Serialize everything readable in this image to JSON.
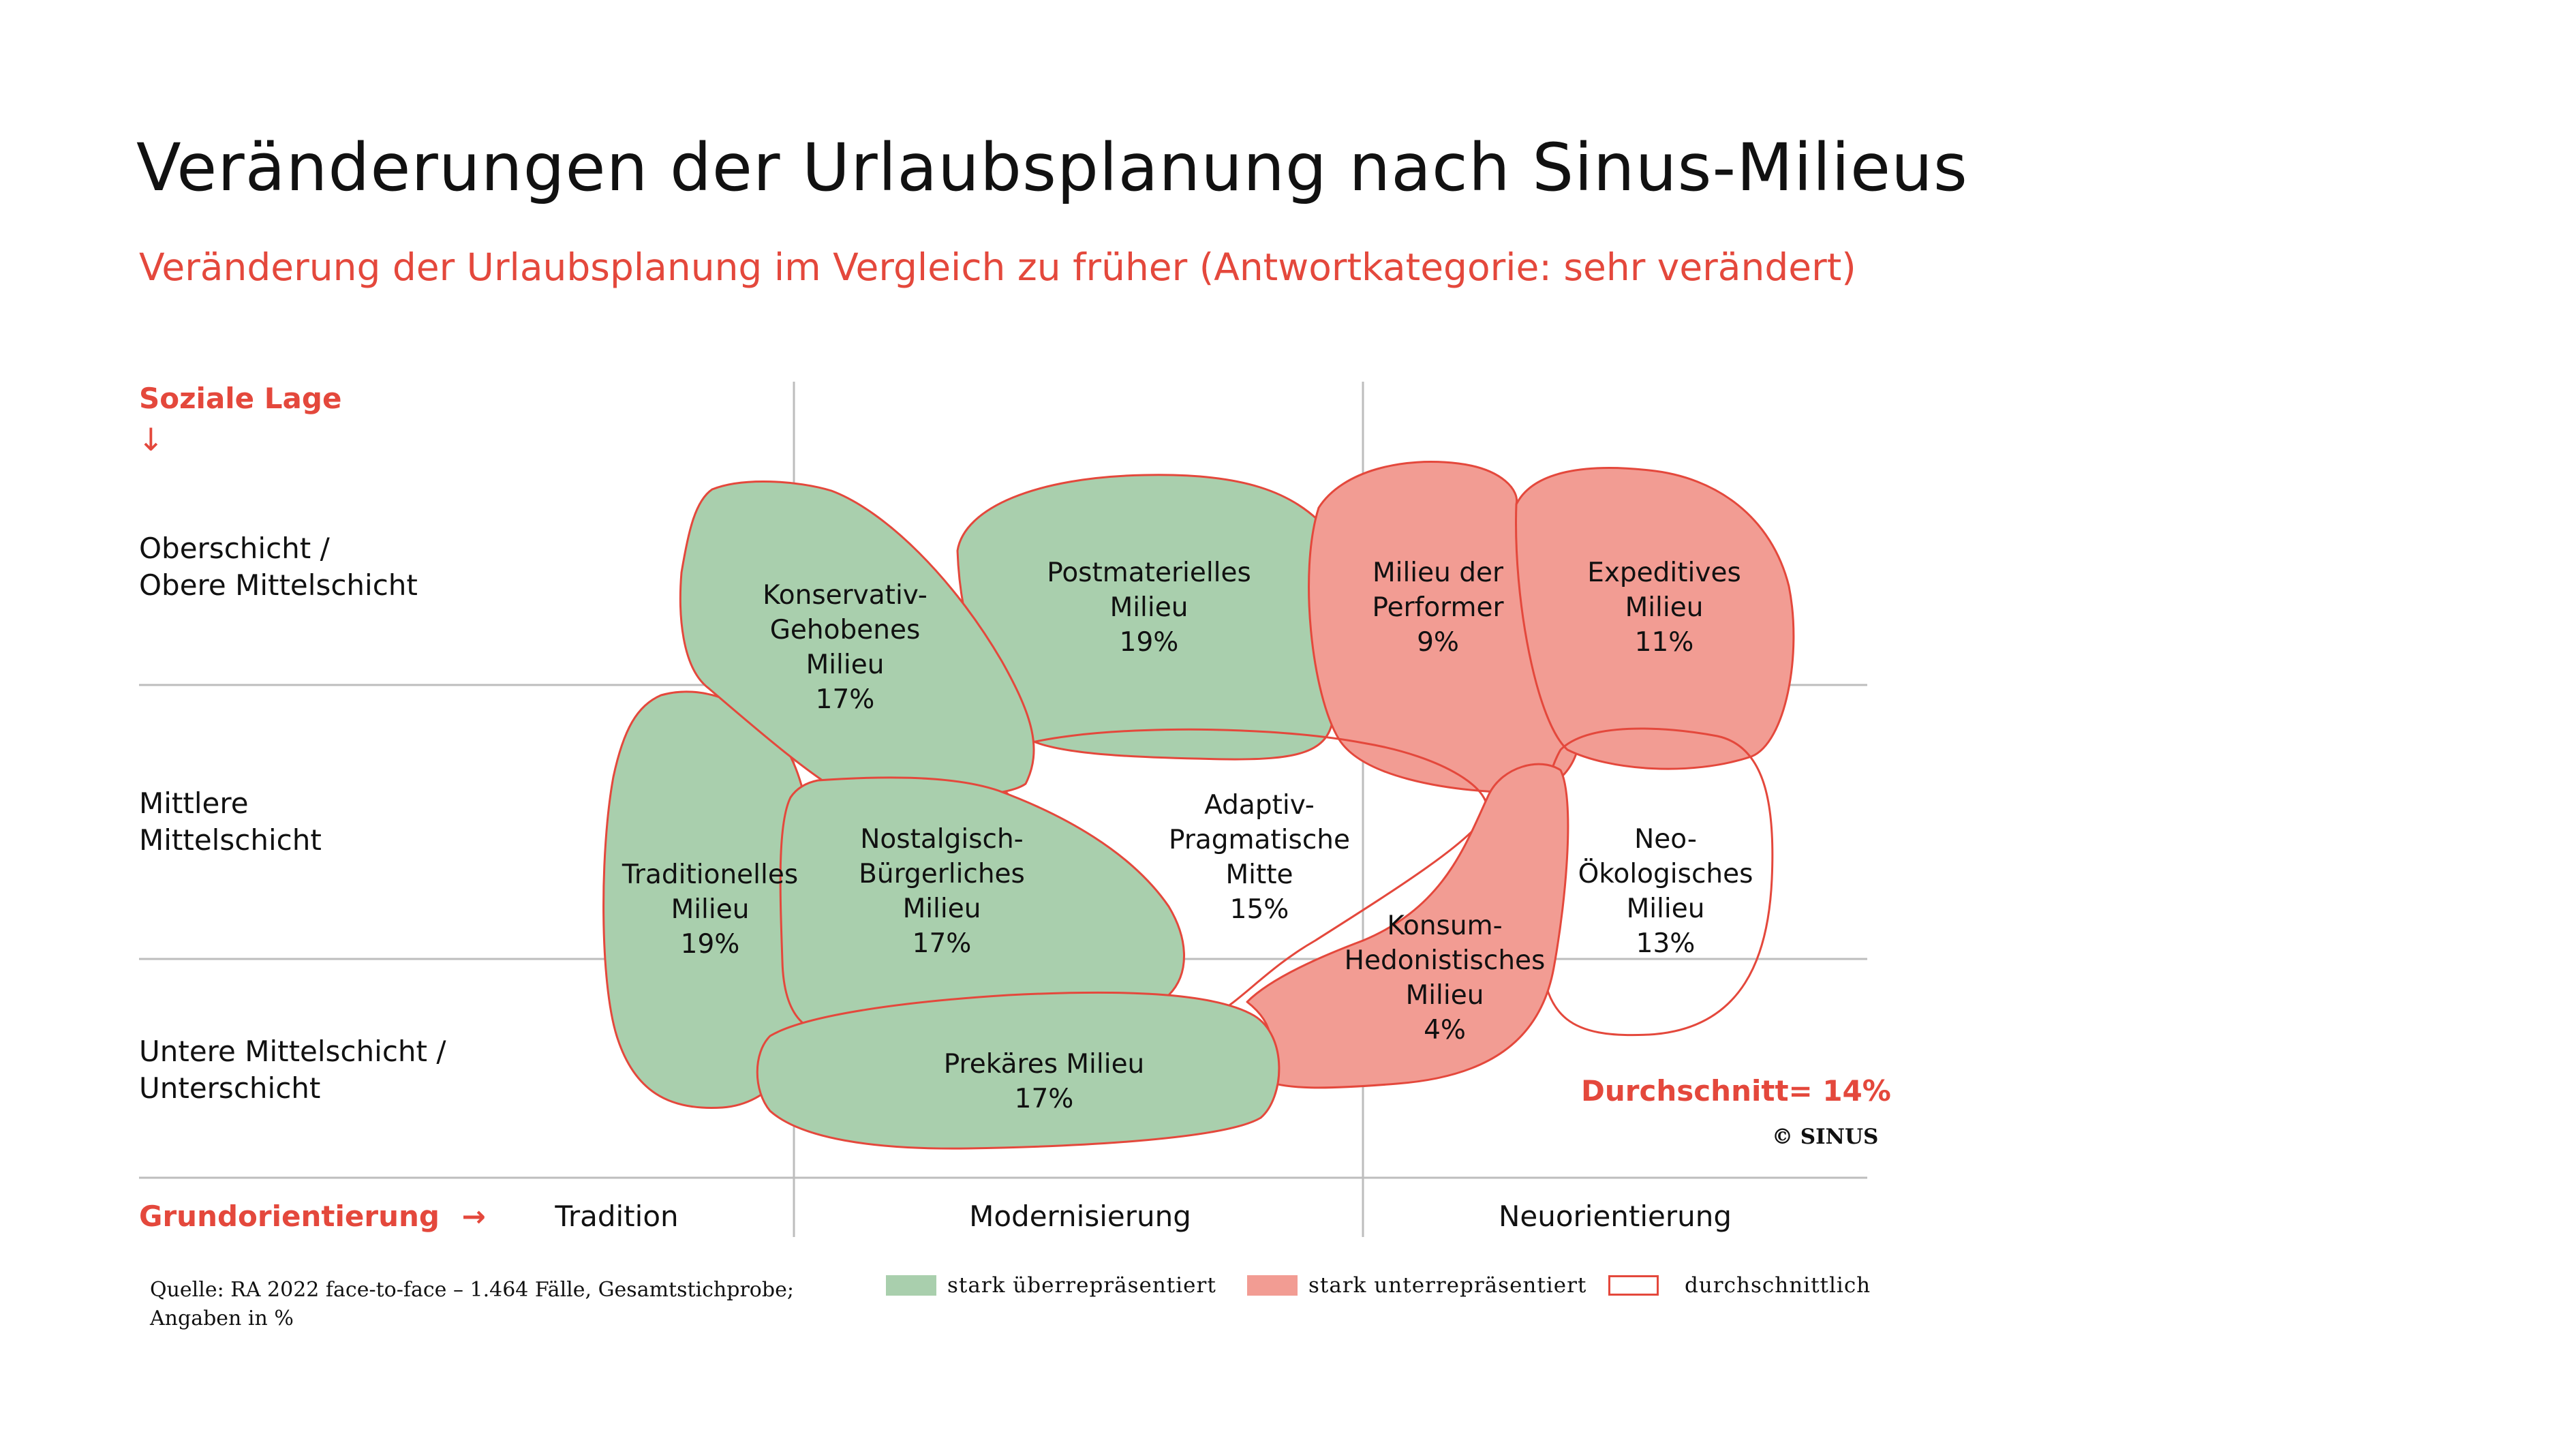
{
  "title": "Veränderungen der Urlaubsplanung nach Sinus-Milieus",
  "subtitle": "Veränderung der Urlaubsplanung im Vergleich zu früher (Antwortkategorie: sehr verändert)",
  "y_axis": {
    "title": "Soziale Lage",
    "arrow": "↓",
    "rows": [
      [
        "Oberschicht /",
        "Obere Mittelschicht"
      ],
      [
        "Mittlere",
        "Mittelschicht"
      ],
      [
        "Untere Mittelschicht /",
        "Unterschicht"
      ]
    ]
  },
  "x_axis": {
    "title": "Grundorientierung",
    "arrow": "→",
    "columns": [
      "Tradition",
      "Modernisierung",
      "Neuorientierung"
    ]
  },
  "milieus": [
    {
      "name_lines": [
        "Konservativ-",
        "Gehobenes",
        "Milieu"
      ],
      "value": "17%",
      "category": "ueber"
    },
    {
      "name_lines": [
        "Postmaterielles",
        "Milieu"
      ],
      "value": "19%",
      "category": "ueber"
    },
    {
      "name_lines": [
        "Milieu der",
        "Performer"
      ],
      "value": "9%",
      "category": "unter"
    },
    {
      "name_lines": [
        "Expeditives",
        "Milieu"
      ],
      "value": "11%",
      "category": "unter"
    },
    {
      "name_lines": [
        "Traditionelles",
        "Milieu"
      ],
      "value": "19%",
      "category": "ueber"
    },
    {
      "name_lines": [
        "Nostalgisch-",
        "Bürgerliches",
        "Milieu"
      ],
      "value": "17%",
      "category": "ueber"
    },
    {
      "name_lines": [
        "Adaptiv-",
        "Pragmatische",
        "Mitte"
      ],
      "value": "15%",
      "category": "durchschnitt"
    },
    {
      "name_lines": [
        "Neo-",
        "Ökologisches",
        "Milieu"
      ],
      "value": "13%",
      "category": "durchschnitt"
    },
    {
      "name_lines": [
        "Konsum-",
        "Hedonistisches",
        "Milieu"
      ],
      "value": "4%",
      "category": "unter"
    },
    {
      "name_lines": [
        "Prekäres Milieu"
      ],
      "value": "17%",
      "category": "ueber"
    }
  ],
  "average": "Durchschnitt= 14%",
  "copyright": "© SINUS",
  "source": [
    "Quelle: RA 2022 face-to-face –  1.464 Fälle, Gesamtstichprobe;",
    "Angaben in %"
  ],
  "legend": [
    {
      "label": "stark überrepräsentiert",
      "color": "#a9cfad",
      "border": "#a9cfad"
    },
    {
      "label": "stark unterrepräsentiert",
      "color": "#f29c93",
      "border": "#f29c93"
    },
    {
      "label": "durchschnittlich",
      "color": "#ffffff",
      "border": "#e4483c"
    }
  ],
  "colors": {
    "green": "#a9cfad",
    "red": "#f29c93",
    "outline": "#e4483c",
    "grid": "#bdbdbd"
  }
}
